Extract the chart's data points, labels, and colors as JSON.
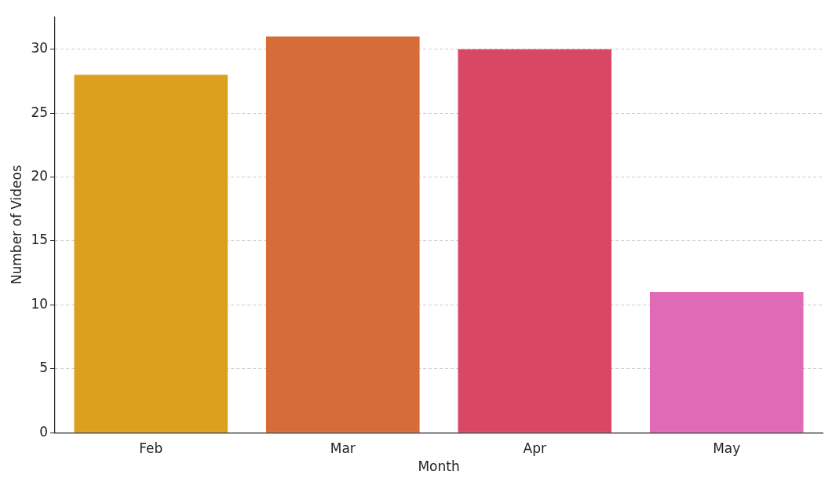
{
  "chart_data": {
    "type": "bar",
    "xlabel": "Month",
    "ylabel": "Number of Videos",
    "categories": [
      "Feb",
      "Mar",
      "Apr",
      "May"
    ],
    "values": [
      28,
      31,
      30,
      11
    ],
    "colors": [
      "#dca01f",
      "#d66d39",
      "#d84865",
      "#e06ab6"
    ],
    "ylim": [
      0,
      32.55
    ],
    "yticks": [
      0,
      5,
      10,
      15,
      20,
      25,
      30
    ],
    "grid": "y",
    "legend": false
  }
}
